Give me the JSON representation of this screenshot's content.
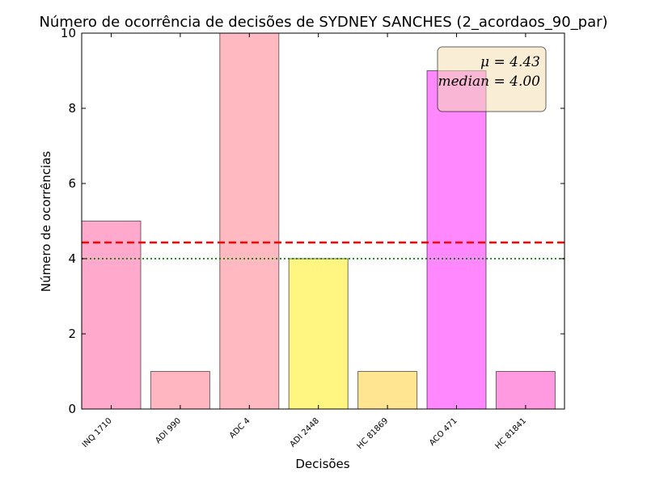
{
  "chart_data": {
    "type": "bar",
    "title": "Número de ocorrência de decisões de SYDNEY SANCHES (2_acordaos_90_par)",
    "xlabel": "Decisões",
    "ylabel": "Número de ocorrências",
    "categories": [
      "INQ 1710",
      "ADI 990",
      "ADC 4",
      "ADI 2448",
      "HC 81869",
      "ACO 471",
      "HC 81841"
    ],
    "values": [
      5,
      1,
      10,
      4,
      1,
      9,
      1
    ],
    "colors": [
      "#ffaacc",
      "#ffb6c1",
      "#ffb9c1",
      "#fff580",
      "#ffe591",
      "#ff88ff",
      "#ff9ae0"
    ],
    "ylim": [
      0,
      10
    ],
    "yticks": [
      "0",
      "2",
      "4",
      "6",
      "8",
      "10"
    ],
    "mean": 4.43,
    "median": 4.0,
    "mean_color": "#ff0000",
    "median_color": "#008000",
    "stats_box": {
      "mean_text": "μ = 4.43",
      "median_text": "median = 4.00",
      "placement": "top-right",
      "background": "#f5deb3"
    },
    "grid": false
  }
}
